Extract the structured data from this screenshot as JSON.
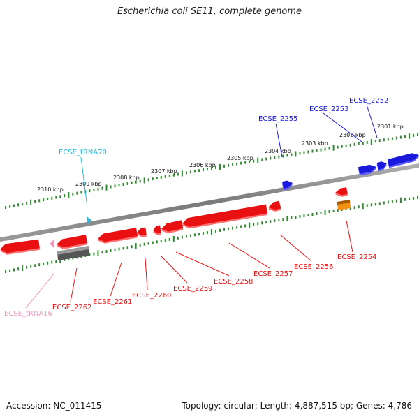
{
  "title": "Escherichia coli SE11, complete genome",
  "footer": {
    "accession": "Accession: NC_011415",
    "summary": "Topology: circular; Length: 4,887,515 bp; Genes: 4,786"
  },
  "colors": {
    "backbone": "#8a8a8a",
    "tick": "#2e8b2e",
    "cds_forward": "#1a1adc",
    "cds_reverse": "#e81010",
    "trna_forward": "#22b8e0",
    "trna_reverse": "#f29ac0",
    "rrna": "#f29010",
    "pseudogene": "#707070"
  },
  "scale_labels": [
    "2301 kbp",
    "2302 kbp",
    "2303 kbp",
    "2304 kbp",
    "2305 kbp",
    "2306 kbp",
    "2307 kbp",
    "2308 kbp",
    "2309 kbp",
    "2310 kbp"
  ],
  "features": [
    {
      "label": "ECSE_2252",
      "type": "CDS",
      "strand": "forward"
    },
    {
      "label": "ECSE_2253",
      "type": "CDS",
      "strand": "forward"
    },
    {
      "label": "ECSE_2255",
      "type": "CDS",
      "strand": "forward"
    },
    {
      "label": "ECSE_tRNA70",
      "type": "tRNA",
      "strand": "forward"
    },
    {
      "label": "ECSE_2254",
      "type": "CDS",
      "strand": "reverse"
    },
    {
      "label": "ECSE_2256",
      "type": "CDS",
      "strand": "reverse"
    },
    {
      "label": "ECSE_2257",
      "type": "CDS",
      "strand": "reverse"
    },
    {
      "label": "ECSE_2258",
      "type": "CDS",
      "strand": "reverse"
    },
    {
      "label": "ECSE_2259",
      "type": "CDS",
      "strand": "reverse"
    },
    {
      "label": "ECSE_2260",
      "type": "CDS",
      "strand": "reverse"
    },
    {
      "label": "ECSE_2261",
      "type": "CDS",
      "strand": "reverse"
    },
    {
      "label": "ECSE_2262",
      "type": "CDS",
      "strand": "reverse"
    },
    {
      "label": "ECSE_tRNA16",
      "type": "tRNA",
      "strand": "reverse"
    }
  ]
}
